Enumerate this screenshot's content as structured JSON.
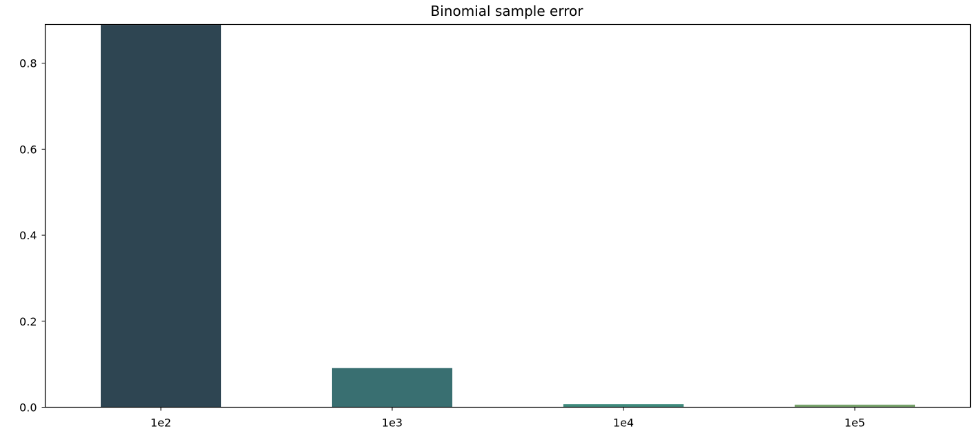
{
  "chart_data": {
    "type": "bar",
    "title": "Binomial sample error",
    "xlabel": "",
    "ylabel": "",
    "categories": [
      "1e2",
      "1e3",
      "1e4",
      "1e5"
    ],
    "values": [
      0.889,
      0.091,
      0.007,
      0.006
    ],
    "bar_colors": [
      "#2e4552",
      "#396f71",
      "#3f8a7c",
      "#77a36b"
    ],
    "ylim": [
      0,
      0.89
    ],
    "yticks": [
      0.0,
      0.2,
      0.4,
      0.6,
      0.8
    ],
    "ytick_labels": [
      "0.0",
      "0.2",
      "0.4",
      "0.6",
      "0.8"
    ],
    "grid": false,
    "legend": "none"
  }
}
